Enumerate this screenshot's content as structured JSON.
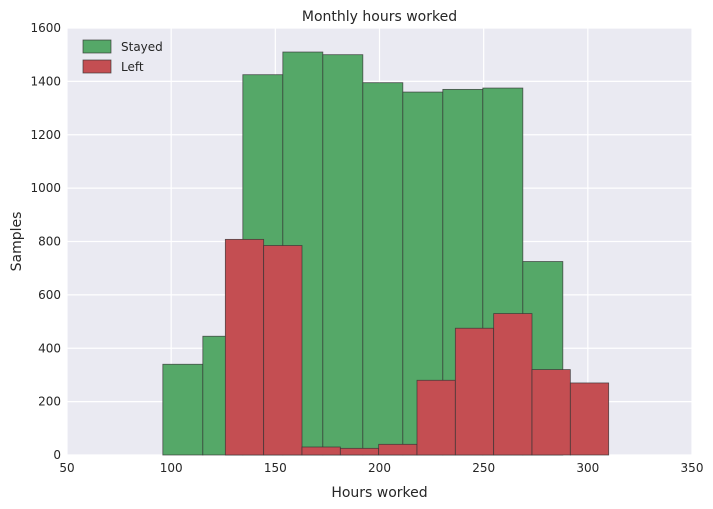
{
  "chart_data": {
    "type": "bar",
    "title": "Monthly hours worked",
    "xlabel": "Hours worked",
    "ylabel": "Samples",
    "xlim": [
      50,
      350
    ],
    "ylim": [
      0,
      1600
    ],
    "xticks": [
      50,
      100,
      150,
      200,
      250,
      300,
      350
    ],
    "yticks": [
      0,
      200,
      400,
      600,
      800,
      1000,
      1200,
      1400,
      1600
    ],
    "grid": true,
    "legend_position": "top-left",
    "series": [
      {
        "name": "Stayed",
        "color": "#55a868",
        "bins": [
          {
            "x0": 96,
            "x1": 115.2,
            "value": 340
          },
          {
            "x0": 115.2,
            "x1": 134.4,
            "value": 445
          },
          {
            "x0": 134.4,
            "x1": 153.6,
            "value": 1425
          },
          {
            "x0": 153.6,
            "x1": 172.8,
            "value": 1510
          },
          {
            "x0": 172.8,
            "x1": 192,
            "value": 1500
          },
          {
            "x0": 192,
            "x1": 211.2,
            "value": 1395
          },
          {
            "x0": 211.2,
            "x1": 230.4,
            "value": 1360
          },
          {
            "x0": 230.4,
            "x1": 249.6,
            "value": 1370
          },
          {
            "x0": 249.6,
            "x1": 268.8,
            "value": 1375
          },
          {
            "x0": 268.8,
            "x1": 288,
            "value": 725
          }
        ]
      },
      {
        "name": "Left",
        "color": "#c44e52",
        "bins": [
          {
            "x0": 126,
            "x1": 144.4,
            "value": 808
          },
          {
            "x0": 144.4,
            "x1": 162.8,
            "value": 785
          },
          {
            "x0": 162.8,
            "x1": 181.2,
            "value": 30
          },
          {
            "x0": 181.2,
            "x1": 199.6,
            "value": 25
          },
          {
            "x0": 199.6,
            "x1": 218,
            "value": 40
          },
          {
            "x0": 218,
            "x1": 236.4,
            "value": 280
          },
          {
            "x0": 236.4,
            "x1": 254.8,
            "value": 475
          },
          {
            "x0": 254.8,
            "x1": 273.2,
            "value": 530
          },
          {
            "x0": 273.2,
            "x1": 291.6,
            "value": 320
          },
          {
            "x0": 291.6,
            "x1": 310,
            "value": 270
          }
        ]
      }
    ]
  }
}
